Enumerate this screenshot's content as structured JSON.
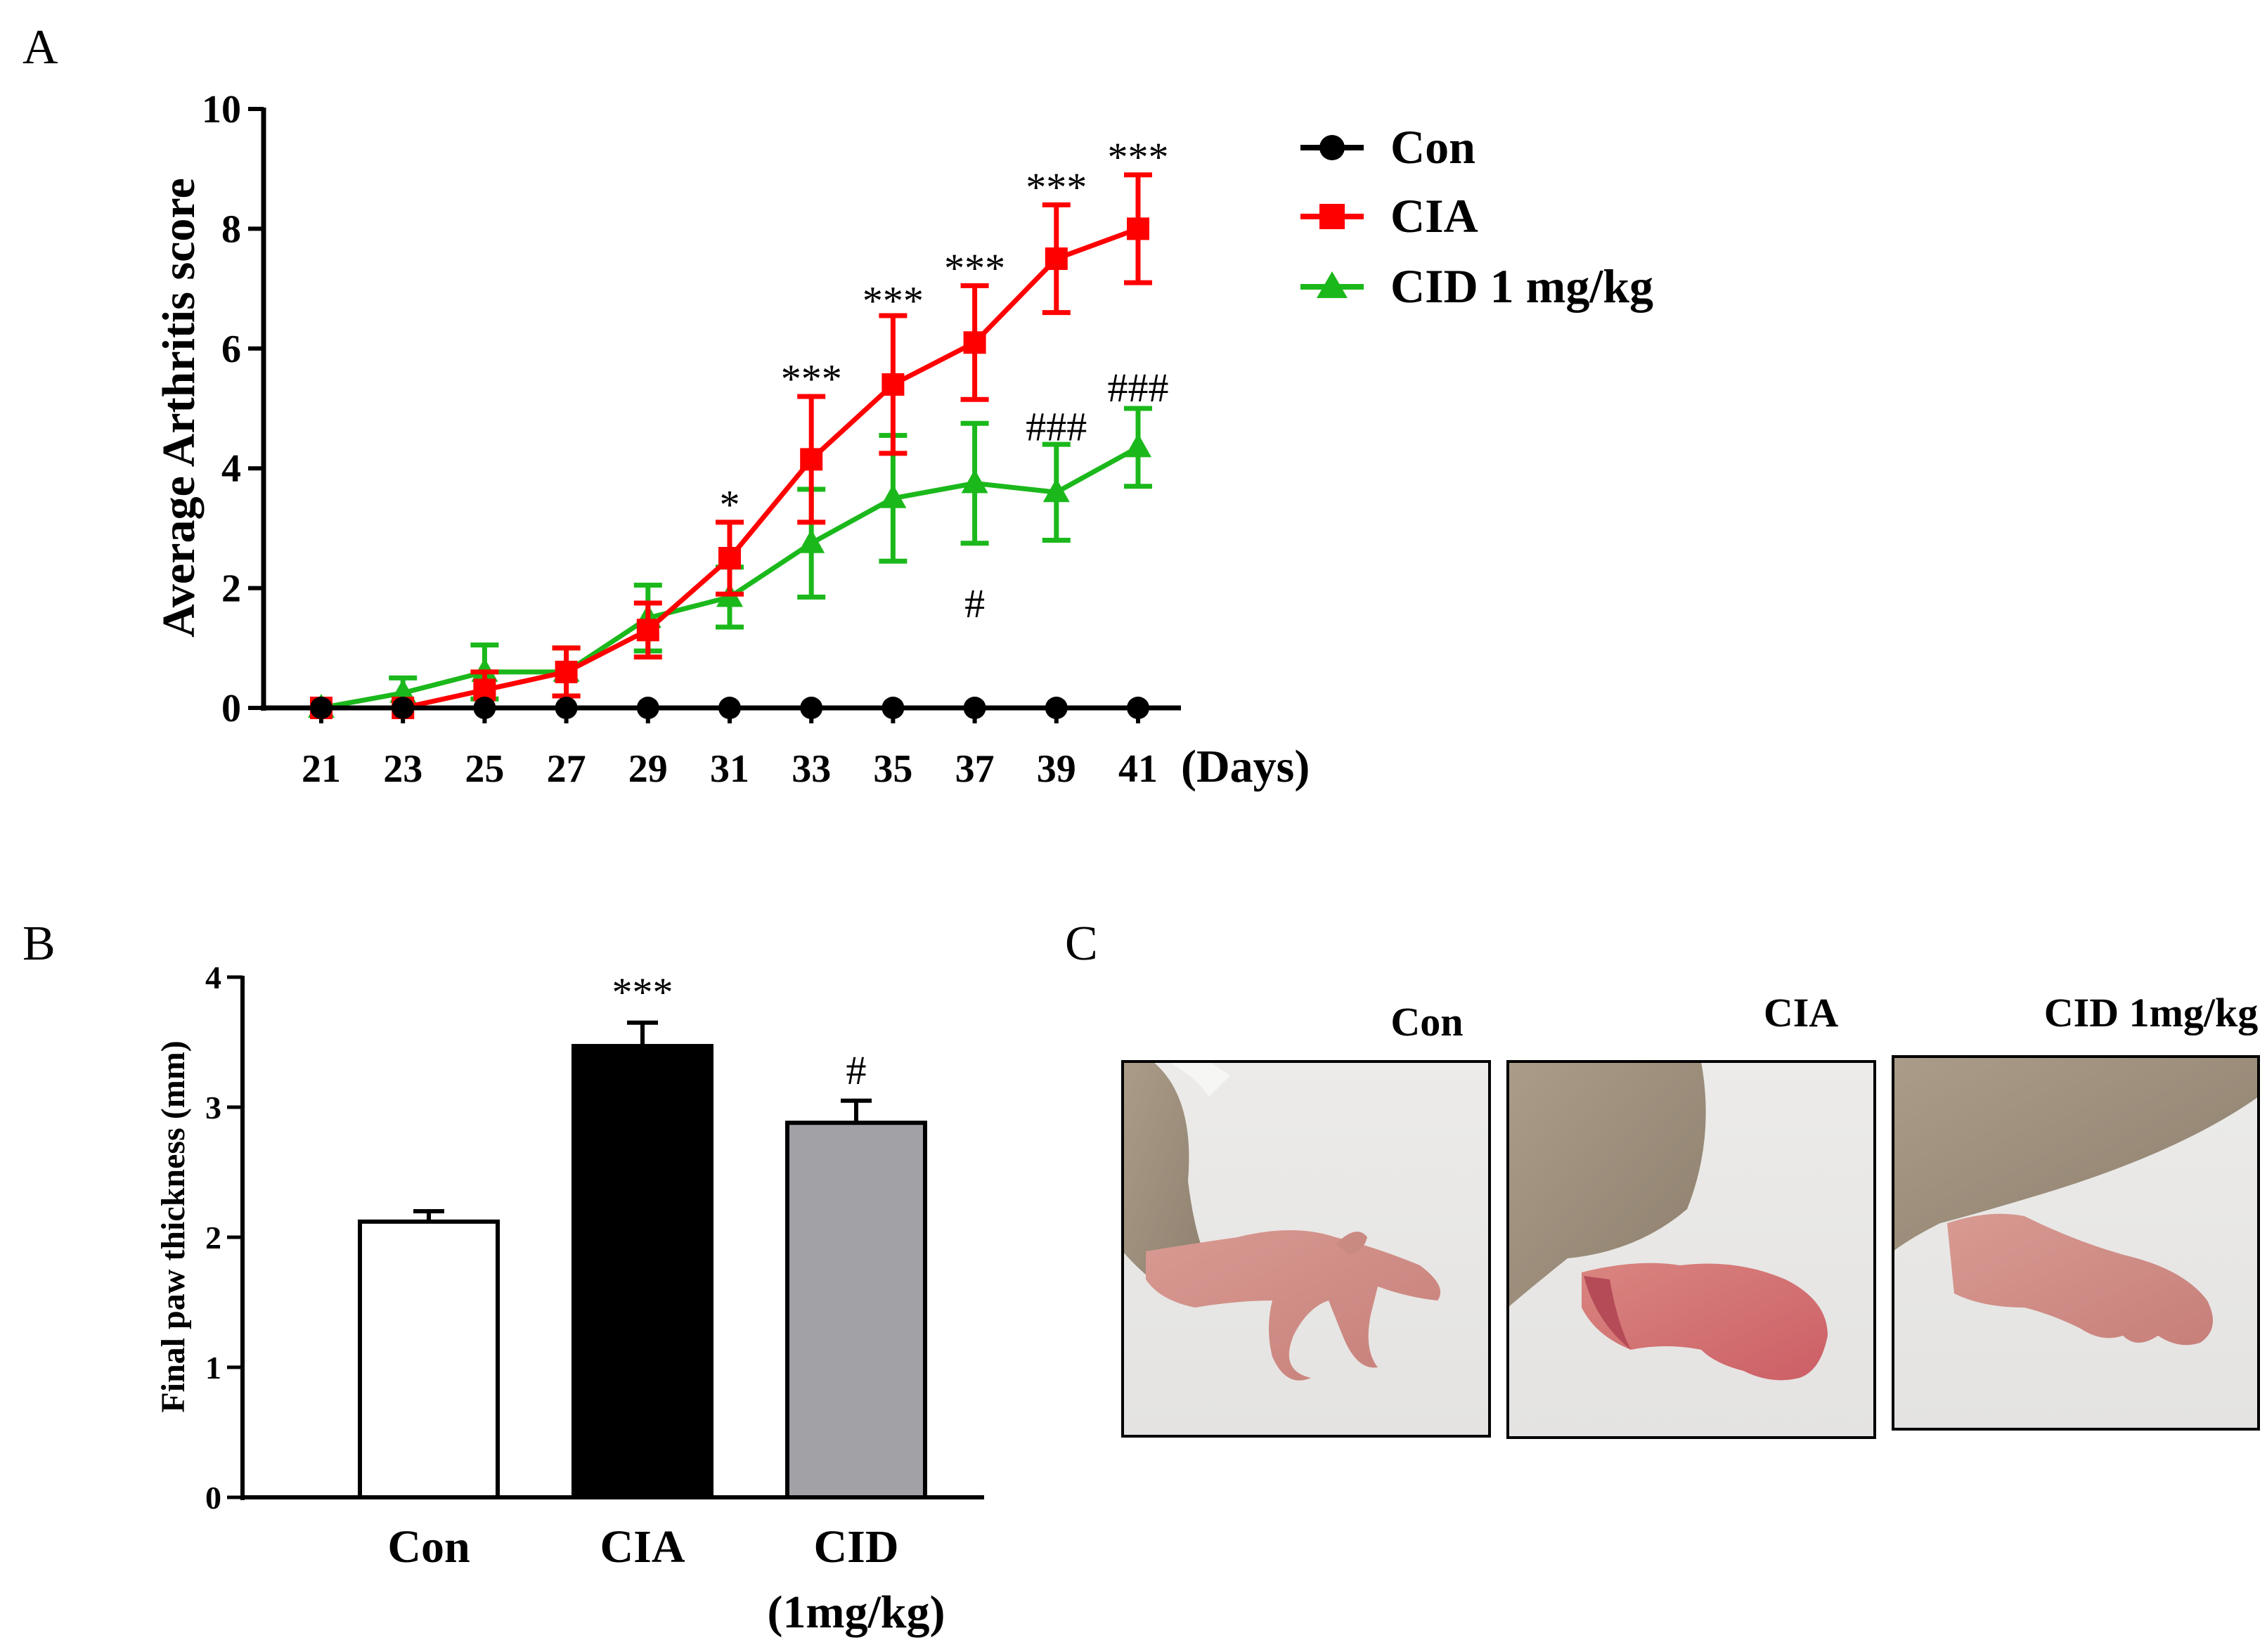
{
  "chart_data": [
    {
      "panel": "A",
      "type": "line",
      "title": "",
      "ylabel": "Average Arthritis score",
      "xlabel": "(Days)",
      "x": [
        21,
        23,
        25,
        27,
        29,
        31,
        33,
        35,
        37,
        39,
        41
      ],
      "xticks": [
        "21",
        "23",
        "25",
        "27",
        "29",
        "31",
        "33",
        "35",
        "37",
        "39",
        "41"
      ],
      "yticks": [
        "0",
        "2",
        "4",
        "6",
        "8",
        "10"
      ],
      "ylim": [
        0,
        10
      ],
      "series": [
        {
          "name": "Con",
          "color": "#000000",
          "marker": "circle",
          "values": [
            0,
            0,
            0,
            0,
            0,
            0,
            0,
            0,
            0,
            0,
            0
          ],
          "errors": [
            0,
            0,
            0,
            0,
            0,
            0,
            0,
            0,
            0,
            0,
            0
          ]
        },
        {
          "name": "CIA",
          "color": "#ff0000",
          "marker": "square",
          "values": [
            0,
            0,
            0.3,
            0.6,
            1.3,
            2.5,
            4.15,
            5.4,
            6.1,
            7.5,
            8.0
          ],
          "errors": [
            0,
            0,
            0.3,
            0.4,
            0.45,
            0.6,
            1.05,
            1.15,
            0.95,
            0.9,
            0.9
          ]
        },
        {
          "name": "CID 1 mg/kg",
          "color": "#1bb81b",
          "marker": "triangle",
          "values": [
            0,
            0.25,
            0.6,
            0.6,
            1.5,
            1.85,
            2.75,
            3.5,
            3.75,
            3.6,
            4.35
          ],
          "errors": [
            0,
            0.25,
            0.45,
            0.4,
            0.55,
            0.5,
            0.9,
            1.05,
            1.0,
            0.8,
            0.65
          ]
        }
      ],
      "annotations": [
        {
          "x": 31,
          "y": 3.4,
          "text": "*"
        },
        {
          "x": 33,
          "y": 5.5,
          "text": "***"
        },
        {
          "x": 35,
          "y": 6.8,
          "text": "***"
        },
        {
          "x": 37,
          "y": 7.35,
          "text": "***"
        },
        {
          "x": 39,
          "y": 8.7,
          "text": "***"
        },
        {
          "x": 41,
          "y": 9.2,
          "text": "***"
        },
        {
          "x": 37,
          "y": 1.75,
          "text": "#"
        },
        {
          "x": 39,
          "y": 4.7,
          "text": "###"
        },
        {
          "x": 41,
          "y": 5.35,
          "text": "###"
        }
      ]
    },
    {
      "panel": "B",
      "type": "bar",
      "title": "",
      "ylabel": "Final paw thickness (mm)",
      "xlabel": "",
      "categories": [
        "Con",
        "CIA",
        "CID"
      ],
      "category_sublabels": [
        "",
        "",
        "(1mg/kg)"
      ],
      "values": [
        2.12,
        3.47,
        2.88
      ],
      "errors": [
        0.08,
        0.18,
        0.17
      ],
      "colors": [
        "#ffffff",
        "#000000",
        "#a1a1a6"
      ],
      "yticks": [
        "0",
        "1",
        "2",
        "3",
        "4"
      ],
      "ylim": [
        0,
        4
      ],
      "annotations": [
        "",
        "***",
        "#"
      ]
    }
  ],
  "panel_labels": {
    "a": "A",
    "b": "B",
    "c": "C"
  },
  "photos": {
    "labels": [
      "Con",
      "CIA",
      "CID 1mg/kg"
    ]
  }
}
